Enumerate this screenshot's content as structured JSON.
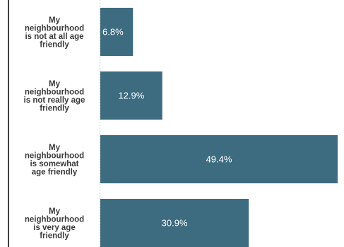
{
  "colors": {
    "bar": "#3d6b7f",
    "label_text": "#3a3a3a",
    "value_text": "#ffffff",
    "axis_line": "#c8c8c8",
    "frame_line": "#000000"
  },
  "chart_data": {
    "type": "bar",
    "orientation": "horizontal",
    "categories": [
      "My neighbourhood is not at all age friendly",
      "My neighbourhood is not really age friendly",
      "My neighbourhood is somewhat age friendly",
      "My neighbourhood is very age friendly"
    ],
    "category_lines": [
      [
        "My",
        "neighbourhood",
        "is not at all age",
        "friendly"
      ],
      [
        "My",
        "neighbourhood",
        "is not really age",
        "friendly"
      ],
      [
        "My",
        "neighbourhood",
        "is somewhat",
        "age friendly"
      ],
      [
        "My",
        "neighbourhood",
        "is very age",
        "friendly"
      ]
    ],
    "values": [
      6.8,
      12.9,
      49.4,
      30.9
    ],
    "value_labels": [
      "6.8%",
      "12.9%",
      "49.4%",
      "30.9%"
    ],
    "xlim": [
      0,
      49.4
    ],
    "title": "",
    "xlabel": "",
    "ylabel": "",
    "grid": false,
    "legend": "none"
  }
}
